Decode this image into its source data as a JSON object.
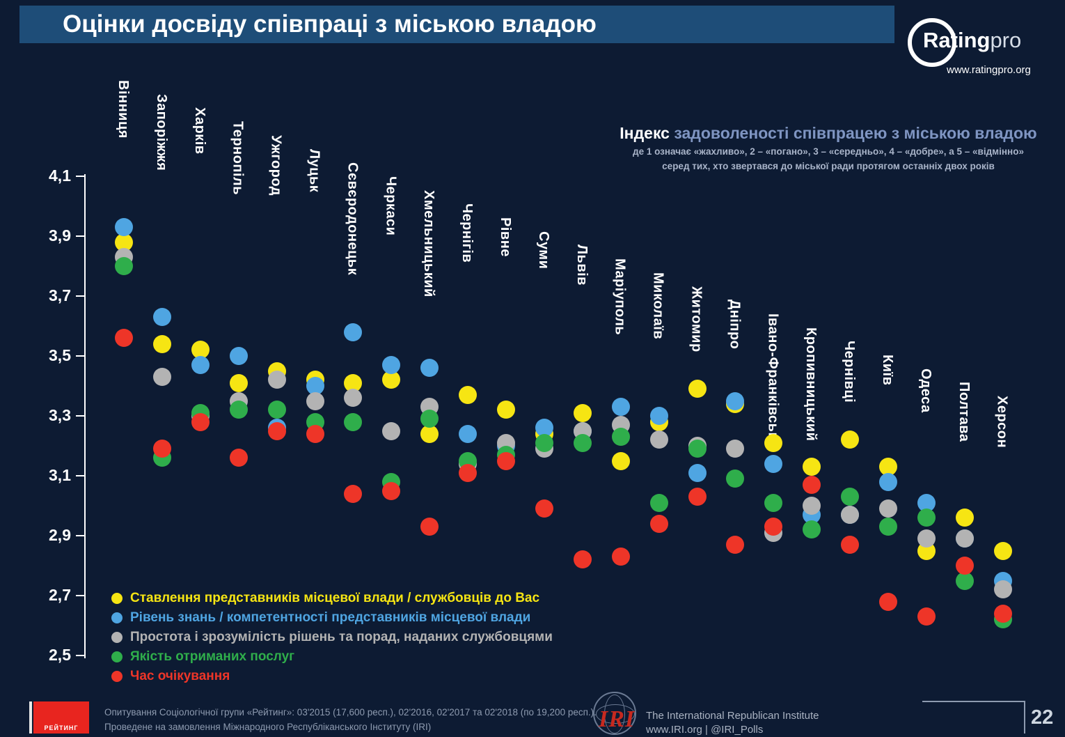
{
  "title": "Оцінки досвіду співпраці з міською владою",
  "logo": {
    "name": "Rating",
    "suffix": "pro",
    "url": "www.ratingpro.org"
  },
  "index_heading": {
    "lead": "Індекс",
    "rest": " задоволеності співпрацею з міською владою",
    "sub1": "де 1 означає «жахливо», 2 – «погано», 3 – «середньо», 4 – «добре», а 5 – «відмінно»",
    "sub2": "серед тих, хто звертався до міської ради протягом останніх двох років"
  },
  "chart_data": {
    "type": "scatter",
    "title": "Індекс задоволеності співпрацею з міською владою",
    "ylim": [
      2.5,
      4.1
    ],
    "ytick_labels": [
      "4,1",
      "3,9",
      "3,7",
      "3,5",
      "3,3",
      "3,1",
      "2,9",
      "2,7",
      "2,5"
    ],
    "ytick_values": [
      4.1,
      3.9,
      3.7,
      3.5,
      3.3,
      3.1,
      2.9,
      2.7,
      2.5
    ],
    "grid": false,
    "legend_position": "bottom-left",
    "categories": [
      "Вінниця",
      "Запоріжжя",
      "Харків",
      "Тернопіль",
      "Ужгород",
      "Луцьк",
      "Сєвєродонецьк",
      "Черкаси",
      "Хмельницький",
      "Чернігів",
      "Рівне",
      "Суми",
      "Львів",
      "Маріуполь",
      "Миколаїв",
      "Житомир",
      "Дніпро",
      "Івано-Франківськ",
      "Кропивницький",
      "Чернівці",
      "Київ",
      "Одеса",
      "Полтава",
      "Херсон"
    ],
    "series": [
      {
        "name": "Ставлення представників місцевої влади / службовців до Вас",
        "color": "#f6e513",
        "values": [
          3.88,
          3.54,
          3.52,
          3.41,
          3.45,
          3.42,
          3.41,
          3.42,
          3.24,
          3.37,
          3.32,
          3.24,
          3.31,
          3.15,
          3.28,
          3.39,
          3.34,
          3.21,
          3.13,
          3.22,
          3.13,
          2.85,
          2.96,
          2.85
        ]
      },
      {
        "name": "Рівень знань / компетентності представників місцевої влади",
        "color": "#4fa5e2",
        "values": [
          3.93,
          3.63,
          3.47,
          3.5,
          3.26,
          3.4,
          3.58,
          3.47,
          3.46,
          3.24,
          3.2,
          3.26,
          3.25,
          3.33,
          3.3,
          3.11,
          3.35,
          3.14,
          2.97,
          2.97,
          3.08,
          3.01,
          2.89,
          2.75
        ]
      },
      {
        "name": "Простота і зрозумілість рішень та порад, наданих службовцями",
        "color": "#b3b3b3",
        "values": [
          3.83,
          3.43,
          3.3,
          3.35,
          3.42,
          3.35,
          3.36,
          3.25,
          3.33,
          3.14,
          3.21,
          3.19,
          3.25,
          3.27,
          3.22,
          3.2,
          3.19,
          2.91,
          3.0,
          2.97,
          2.99,
          2.89,
          2.89,
          2.72
        ]
      },
      {
        "name": "Якість отриманих послуг",
        "color": "#2fae4b",
        "values": [
          3.8,
          3.16,
          3.31,
          3.32,
          3.32,
          3.28,
          3.28,
          3.08,
          3.29,
          3.15,
          3.17,
          3.21,
          3.21,
          3.23,
          3.01,
          3.19,
          3.09,
          3.01,
          2.92,
          3.03,
          2.93,
          2.96,
          2.75,
          2.62
        ]
      },
      {
        "name": "Час очікування",
        "color": "#ee3528",
        "values": [
          3.56,
          3.19,
          3.28,
          3.16,
          3.25,
          3.24,
          3.04,
          3.05,
          2.93,
          3.11,
          3.15,
          2.99,
          2.82,
          2.83,
          2.94,
          3.03,
          2.87,
          2.93,
          3.07,
          2.87,
          2.68,
          2.63,
          2.8,
          2.64
        ]
      }
    ]
  },
  "footer": {
    "rating_logo_label": "РЕЙТИНГ",
    "lines": [
      "Опитування Соціологічної групи «Рейтинг»: 03'2015 (17,600 респ.), 02'2016, 02'2017 та 02'2018 (по 19,200 респ.).",
      "Проведене на замовлення Міжнародного Республіканського Інституту (IRI)"
    ],
    "iri_abbr": "IRI",
    "iri_lines": [
      "The International Republican Institute",
      "www.IRI.org | @IRI_Polls"
    ],
    "page_number": "22"
  },
  "colors": {
    "background": "#0d1b33",
    "title_bar": "#1e4d78",
    "index_accent": "#7f95c2",
    "axis": "#ffffff"
  }
}
